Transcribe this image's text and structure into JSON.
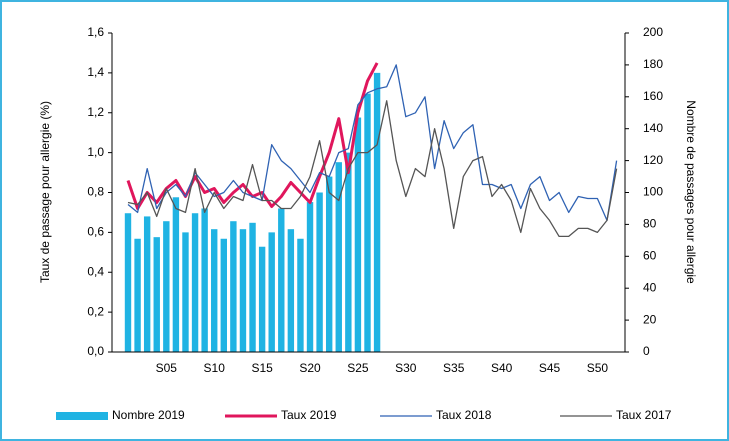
{
  "chart_data": {
    "type": "bar-line",
    "y_label": "Taux de passage pour allergie (%)",
    "y2_label": "Nombre de passages pour allergie",
    "categories": [
      null,
      null,
      null,
      null,
      "S05",
      null,
      null,
      null,
      null,
      "S10",
      null,
      null,
      null,
      null,
      "S15",
      null,
      null,
      null,
      null,
      "S20",
      null,
      null,
      null,
      null,
      "S25",
      null,
      null,
      null,
      null,
      "S30",
      null,
      null,
      null,
      null,
      "S35",
      null,
      null,
      null,
      null,
      "S40",
      null,
      null,
      null,
      null,
      "S45",
      null,
      null,
      null,
      null,
      "S50",
      null,
      null
    ],
    "ylim": [
      0,
      1.6
    ],
    "yticks": [
      {
        "value": 0,
        "label": "0,0"
      },
      {
        "value": 0.2,
        "label": "0,2"
      },
      {
        "value": 0.4,
        "label": "0,4"
      },
      {
        "value": 0.6,
        "label": "0,6"
      },
      {
        "value": 0.8,
        "label": "0,8"
      },
      {
        "value": 1.0,
        "label": "1,0"
      },
      {
        "value": 1.2,
        "label": "1,2"
      },
      {
        "value": 1.4,
        "label": "1,4"
      },
      {
        "value": 1.6,
        "label": "1,6"
      }
    ],
    "y2lim": [
      0,
      200
    ],
    "y2ticks": [
      0,
      20,
      40,
      60,
      80,
      100,
      120,
      140,
      160,
      180,
      200
    ],
    "series": [
      {
        "name": "Nombre 2019",
        "type": "bar",
        "axis": "y2",
        "color": "#1fb3e3",
        "values": [
          87,
          71,
          85,
          72,
          82,
          97,
          75,
          87,
          90,
          77,
          71,
          82,
          77,
          81,
          66,
          75,
          90,
          77,
          71,
          94,
          100,
          110,
          119,
          125,
          147,
          162,
          175,
          null,
          null,
          null,
          null,
          null,
          null,
          null,
          null,
          null,
          null,
          null,
          null,
          null,
          null,
          null,
          null,
          null,
          null,
          null,
          null,
          null,
          null,
          null,
          null,
          null
        ]
      },
      {
        "name": "Taux 2019",
        "type": "line",
        "color": "#e0165c",
        "width": 3,
        "values": [
          0.86,
          0.72,
          0.8,
          0.75,
          0.82,
          0.86,
          0.78,
          0.88,
          0.8,
          0.82,
          0.75,
          0.8,
          0.84,
          0.78,
          0.8,
          0.73,
          0.78,
          0.85,
          0.8,
          0.75,
          0.88,
          1.0,
          1.17,
          0.9,
          1.2,
          1.36,
          1.45,
          null,
          null,
          null,
          null,
          null,
          null,
          null,
          null,
          null,
          null,
          null,
          null,
          null,
          null,
          null,
          null,
          null,
          null,
          null,
          null,
          null,
          null,
          null,
          null,
          null
        ]
      },
      {
        "name": "Taux 2018",
        "type": "line",
        "color": "#2f62b3",
        "width": 1.3,
        "values": [
          0.74,
          0.7,
          0.92,
          0.72,
          0.8,
          0.84,
          0.78,
          0.9,
          0.84,
          0.78,
          0.8,
          0.86,
          0.8,
          0.78,
          0.76,
          1.04,
          0.96,
          0.92,
          0.86,
          0.8,
          0.9,
          0.88,
          1.0,
          1.02,
          1.24,
          1.3,
          1.32,
          1.33,
          1.44,
          1.18,
          1.2,
          1.28,
          0.92,
          1.16,
          1.02,
          1.1,
          1.14,
          0.84,
          0.84,
          0.82,
          0.84,
          0.72,
          0.84,
          0.88,
          0.76,
          0.8,
          0.7,
          0.78,
          0.77,
          0.77,
          0.66,
          0.96
        ]
      },
      {
        "name": "Taux 2017",
        "type": "line",
        "color": "#555555",
        "width": 1.3,
        "values": [
          0.75,
          0.74,
          0.8,
          0.68,
          0.82,
          0.72,
          0.7,
          0.92,
          0.7,
          0.8,
          0.72,
          0.78,
          0.76,
          0.94,
          0.76,
          0.76,
          0.72,
          0.72,
          0.78,
          0.88,
          1.06,
          0.8,
          0.76,
          0.92,
          1.0,
          1.0,
          1.04,
          1.26,
          0.96,
          0.78,
          0.92,
          0.88,
          1.12,
          0.92,
          0.62,
          0.88,
          0.96,
          0.98,
          0.78,
          0.84,
          0.76,
          0.6,
          0.82,
          0.72,
          0.66,
          0.58,
          0.58,
          0.62,
          0.62,
          0.6,
          0.66,
          0.92
        ]
      }
    ]
  }
}
